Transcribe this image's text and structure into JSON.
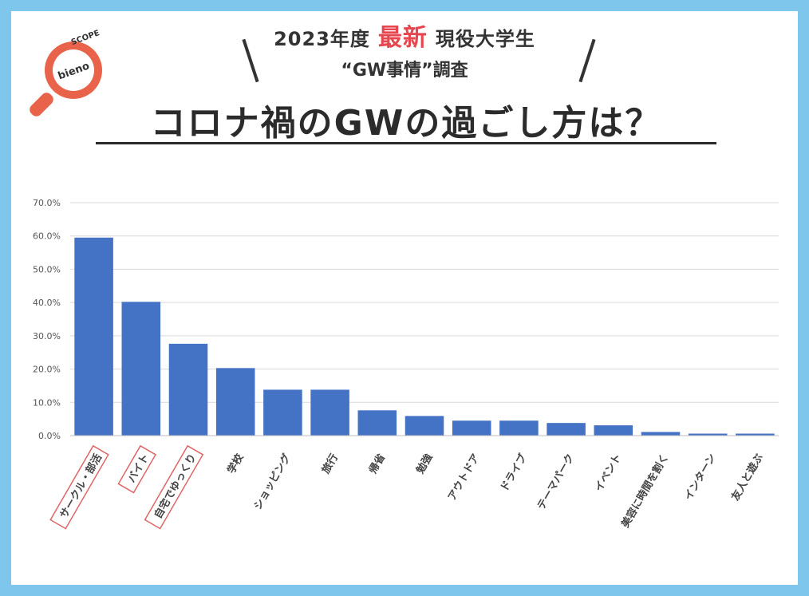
{
  "header": {
    "year_text": "2023年度",
    "accent_text": "最新",
    "subject_text": "現役大学生",
    "line2": "“GW事情”調査",
    "title": "コロナ禍のGWの過ごし方は？"
  },
  "logo": {
    "tag": "SCOPE",
    "brand": "bieno",
    "icon": "magnifier-icon"
  },
  "colors": {
    "frame": "#7fc6ec",
    "bar": "#4472c4",
    "accent": "#e8464f",
    "highlight_box": "#e06666"
  },
  "chart_data": {
    "type": "bar",
    "categories": [
      "サークル・部活",
      "バイト",
      "自宅でゆっくり",
      "学校",
      "ショッピング",
      "旅行",
      "帰省",
      "勉強",
      "アウトドア",
      "ドライブ",
      "テーマパーク",
      "イベント",
      "美容に時間を割く",
      "インターン",
      "友人と遊ぶ"
    ],
    "values": [
      59.5,
      40.2,
      27.6,
      20.3,
      13.8,
      13.8,
      7.6,
      5.9,
      4.5,
      4.5,
      3.8,
      3.1,
      1.1,
      0.6,
      0.6
    ],
    "highlighted": [
      "サークル・部活",
      "バイト",
      "自宅でゆっくり"
    ],
    "yticks": [
      "0.0%",
      "10.0%",
      "20.0%",
      "30.0%",
      "40.0%",
      "50.0%",
      "60.0%",
      "70.0%"
    ],
    "ylim": [
      0,
      70
    ],
    "grid": true
  }
}
